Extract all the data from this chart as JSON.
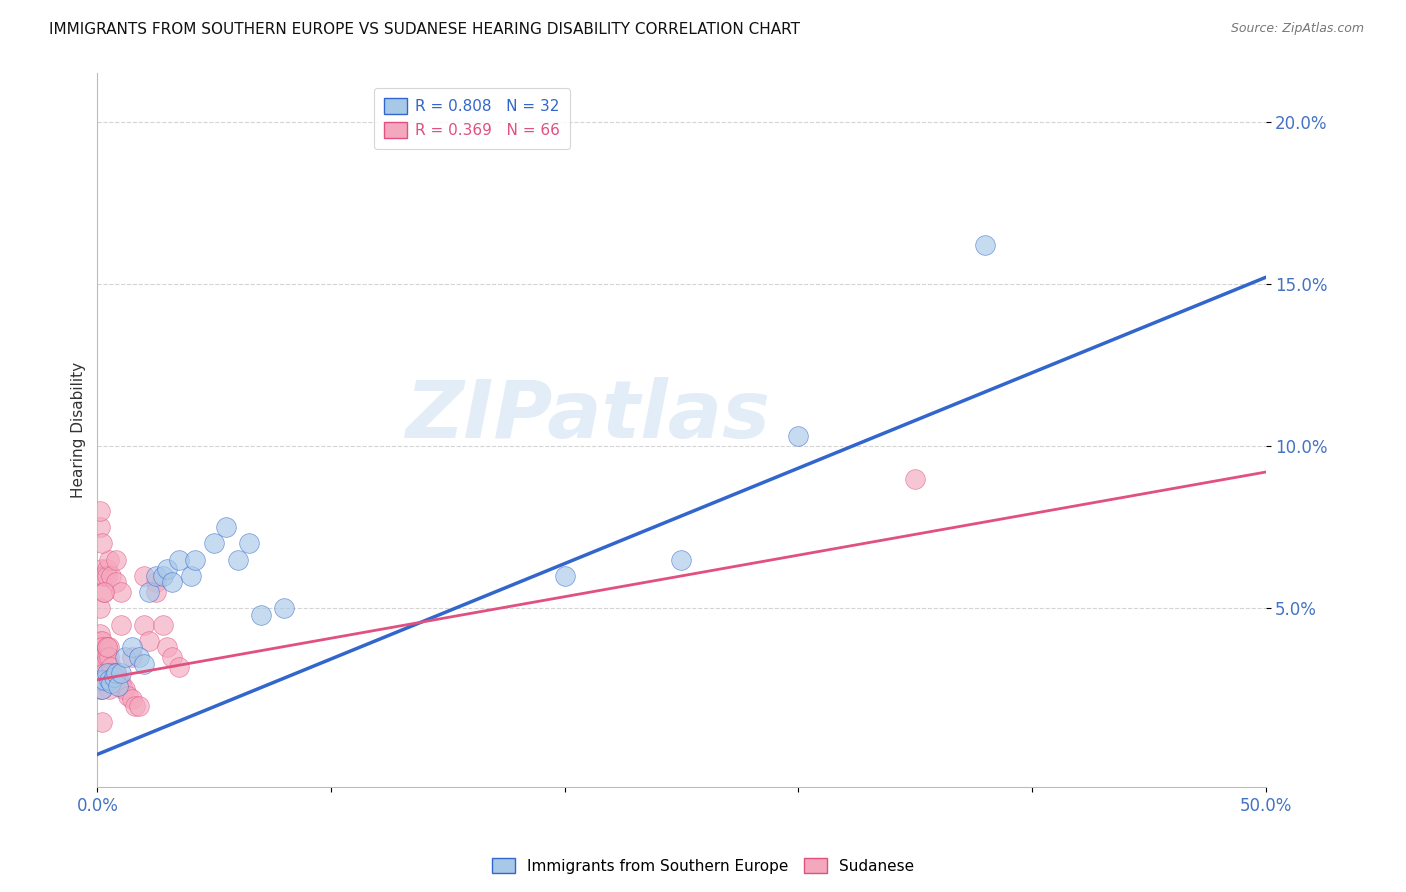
{
  "title": "IMMIGRANTS FROM SOUTHERN EUROPE VS SUDANESE HEARING DISABILITY CORRELATION CHART",
  "source": "Source: ZipAtlas.com",
  "ylabel": "Hearing Disability",
  "xlim": [
    0.0,
    0.5
  ],
  "ylim": [
    -0.005,
    0.215
  ],
  "yticks": [
    0.05,
    0.1,
    0.15,
    0.2
  ],
  "ytick_labels": [
    "5.0%",
    "10.0%",
    "15.0%",
    "20.0%"
  ],
  "xticks": [
    0.0,
    0.1,
    0.2,
    0.3,
    0.4,
    0.5
  ],
  "xtick_labels": [
    "0.0%",
    "",
    "",
    "",
    "",
    "50.0%"
  ],
  "blue_R": 0.808,
  "blue_N": 32,
  "pink_R": 0.369,
  "pink_N": 66,
  "blue_color": "#a8c8e8",
  "pink_color": "#f4a8be",
  "line_blue_color": "#3366cc",
  "line_pink_color": "#e05080",
  "watermark": "ZIPatlas",
  "blue_scatter_x": [
    0.001,
    0.002,
    0.003,
    0.004,
    0.005,
    0.006,
    0.007,
    0.008,
    0.009,
    0.01,
    0.012,
    0.015,
    0.018,
    0.02,
    0.022,
    0.025,
    0.028,
    0.03,
    0.032,
    0.035,
    0.04,
    0.042,
    0.05,
    0.055,
    0.06,
    0.065,
    0.07,
    0.08,
    0.38,
    0.3,
    0.2,
    0.25
  ],
  "blue_scatter_y": [
    0.028,
    0.025,
    0.028,
    0.03,
    0.028,
    0.027,
    0.029,
    0.03,
    0.026,
    0.03,
    0.035,
    0.038,
    0.035,
    0.033,
    0.055,
    0.06,
    0.06,
    0.062,
    0.058,
    0.065,
    0.06,
    0.065,
    0.07,
    0.075,
    0.065,
    0.07,
    0.048,
    0.05,
    0.162,
    0.103,
    0.06,
    0.065
  ],
  "pink_scatter_x": [
    0.001,
    0.001,
    0.001,
    0.001,
    0.001,
    0.001,
    0.001,
    0.001,
    0.001,
    0.001,
    0.002,
    0.002,
    0.002,
    0.002,
    0.002,
    0.002,
    0.002,
    0.003,
    0.003,
    0.003,
    0.003,
    0.003,
    0.004,
    0.004,
    0.004,
    0.004,
    0.005,
    0.005,
    0.005,
    0.006,
    0.006,
    0.007,
    0.008,
    0.008,
    0.009,
    0.01,
    0.01,
    0.011,
    0.012,
    0.013,
    0.015,
    0.016,
    0.018,
    0.02,
    0.022,
    0.025,
    0.028,
    0.03,
    0.032,
    0.035,
    0.02,
    0.025,
    0.015,
    0.01,
    0.008,
    0.006,
    0.005,
    0.004,
    0.003,
    0.002,
    0.001,
    0.002,
    0.001,
    0.003,
    0.35,
    0.002
  ],
  "pink_scatter_y": [
    0.028,
    0.03,
    0.032,
    0.025,
    0.027,
    0.04,
    0.038,
    0.035,
    0.042,
    0.05,
    0.04,
    0.038,
    0.035,
    0.032,
    0.062,
    0.06,
    0.028,
    0.035,
    0.033,
    0.03,
    0.06,
    0.055,
    0.038,
    0.035,
    0.062,
    0.06,
    0.038,
    0.035,
    0.065,
    0.032,
    0.06,
    0.03,
    0.03,
    0.058,
    0.028,
    0.027,
    0.055,
    0.025,
    0.025,
    0.023,
    0.022,
    0.02,
    0.02,
    0.045,
    0.04,
    0.058,
    0.045,
    0.038,
    0.035,
    0.032,
    0.06,
    0.055,
    0.035,
    0.045,
    0.065,
    0.03,
    0.025,
    0.038,
    0.028,
    0.025,
    0.075,
    0.07,
    0.08,
    0.055,
    0.09,
    0.015
  ],
  "blue_line_x": [
    0.0,
    0.5
  ],
  "blue_line_y": [
    0.005,
    0.152
  ],
  "pink_line_x": [
    0.0,
    0.5
  ],
  "pink_line_y": [
    0.028,
    0.092
  ],
  "background_color": "#ffffff",
  "grid_color": "#d0d0d0",
  "tick_label_color": "#4472c4",
  "title_fontsize": 11,
  "legend_fontsize": 11
}
